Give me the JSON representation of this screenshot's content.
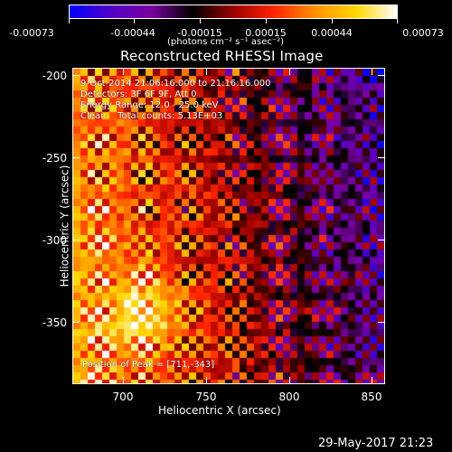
{
  "colorbar": {
    "gradient": [
      "#0000ff",
      "#5000c8",
      "#7a00a0",
      "#000000",
      "#9b0000",
      "#ff2400",
      "#ff9000",
      "#ffd700",
      "#ffffff"
    ],
    "ticks": [
      "-0.00073",
      "-0.00044",
      "-0.00015",
      "0.00015",
      "0.00044",
      "0.00073"
    ],
    "units_label": "(photons cm⁻² s⁻¹ asec⁻²)"
  },
  "plot": {
    "title": "Reconstructed RHESSI Image",
    "xlabel": "Heliocentric X (arcsec)",
    "ylabel": "Heliocentric Y (arcsec)",
    "xticks": [
      "700",
      "750",
      "800",
      "850"
    ],
    "yticks": [
      "-200",
      "-250",
      "-300",
      "-350"
    ],
    "annotations": {
      "line1": "9-Oct-2014 21:06:16.000 to 21:16:16.000",
      "line2": "Detectors: 3F 6F 9F, Att 0",
      "line3": "Energy Range: 12.0 - 25.0 keV",
      "line4": "Clean    Total counts: 5.13E+03",
      "peak": "Position of Peak = [711,-343]"
    }
  },
  "footer": {
    "date": "29-May-2017 21:23"
  }
}
